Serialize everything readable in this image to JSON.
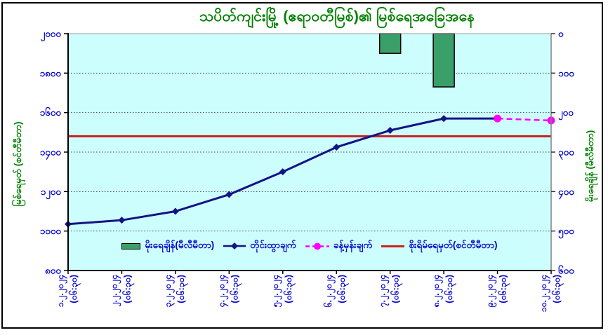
{
  "window": {
    "background": "#FFFFFF",
    "border_color": "#000000"
  },
  "chart_data": {
    "type": "combo",
    "subtype": [
      "bar",
      "line",
      "dashed-line",
      "hline"
    ],
    "title": "သပိတ်ကျင်းမြို့ (ဧရာဝတီမြစ်)၏ မြစ်ရေအခြေအနေ",
    "title_color": "#008000",
    "plot_bg": "#CDFEFE",
    "grid": "horizontal-dotted",
    "legend_position": "bottom-inside",
    "categories": [
      "၁.၂.၂၀၂၄",
      "၂.၂.၂၀၂၄",
      "၃.၂.၂၀၂၄",
      "၄.၂.၂၀၂၄",
      "၅.၂.၂၀၂၄",
      "၆.၂.၂၀၂၄",
      "၇.၂.၂၀၂၄",
      "၈.၂.၂၀၂၄",
      "၉.၂.၂၀၂၄",
      "၁၀.၂.၂၀၂၄"
    ],
    "category_time_suffix": "(၀၆:၃၀)",
    "x_tick_label_color": "#0000CC",
    "left_axis": {
      "title": "မြစ်ရေမှတ် (စင်တီမီတာ)",
      "title_color": "#008000",
      "min": 800,
      "max": 2000,
      "step": 200,
      "tick_values": [
        2000,
        1800,
        1600,
        1400,
        1200,
        1000,
        800
      ],
      "tick_labels": [
        "၂၀၀၀",
        "၁၈၀၀",
        "၁၆၀၀",
        "၁၄၀၀",
        "၁၂၀၀",
        "၁၀၀၀",
        "၈၀၀"
      ],
      "tick_color": "#0000CC"
    },
    "right_axis": {
      "title": "မိုးရေချိန် (မီလီမီတာ)",
      "title_color": "#008000",
      "min": 0,
      "max": 600,
      "step": 100,
      "bars_hang_from_top": true,
      "tick_values": [
        0,
        100,
        200,
        300,
        400,
        500,
        600
      ],
      "tick_labels": [
        "၀",
        "၁၀၀",
        "၂၀၀",
        "၃၀၀",
        "၄၀၀",
        "၅၀၀",
        "၆၀၀"
      ],
      "tick_color": "#0000CC"
    },
    "series": [
      {
        "name": "မိုးရေချိန်(မီလီမီတာ)",
        "type": "bar",
        "axis": "right",
        "color": "#3AA06A",
        "values": [
          null,
          null,
          null,
          null,
          null,
          null,
          50,
          135,
          null,
          null
        ]
      },
      {
        "name": "တိုင်းထွာချက်",
        "type": "line",
        "marker": "diamond",
        "axis": "left",
        "color": "#131384",
        "values": [
          1035,
          1055,
          1100,
          1185,
          1300,
          1425,
          1510,
          1570,
          1570,
          null
        ]
      },
      {
        "name": "ခန့်မှန်းချက်",
        "type": "dashed-line",
        "marker": "circle",
        "axis": "left",
        "color": "#FF00FF",
        "values": [
          null,
          null,
          null,
          null,
          null,
          null,
          null,
          null,
          1570,
          1560
        ]
      },
      {
        "name": "စိုးရိမ်ရေမှတ်(စင်တီမီတာ)",
        "type": "hline",
        "axis": "left",
        "color": "#CC2222",
        "value": 1480
      }
    ]
  }
}
